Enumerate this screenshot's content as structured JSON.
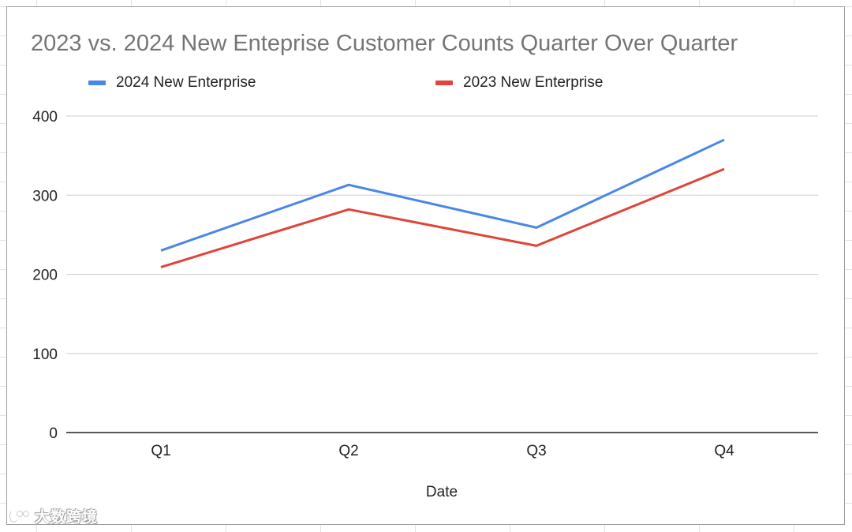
{
  "chart_data": {
    "type": "line",
    "title": "2023 vs. 2024 New Enteprise Customer Counts Quarter Over Quarter",
    "categories": [
      "Q1",
      "Q2",
      "Q3",
      "Q4"
    ],
    "xlabel": "Date",
    "ylabel": "",
    "ylim": [
      0,
      400
    ],
    "yticks": [
      0,
      100,
      200,
      300,
      400
    ],
    "ytick_labels": [
      "0",
      "100",
      "200",
      "300",
      "400"
    ],
    "grid": true,
    "legend_position": "top",
    "series": [
      {
        "name": "2024 New Enterprise",
        "color": "#4a86e8",
        "values": [
          230,
          313,
          259,
          370
        ]
      },
      {
        "name": "2023 New Enterprise",
        "color": "#e0443a",
        "values": [
          209,
          282,
          236,
          333
        ]
      }
    ]
  },
  "watermark": {
    "text": "大数跨境",
    "icon": "logo-icon"
  }
}
